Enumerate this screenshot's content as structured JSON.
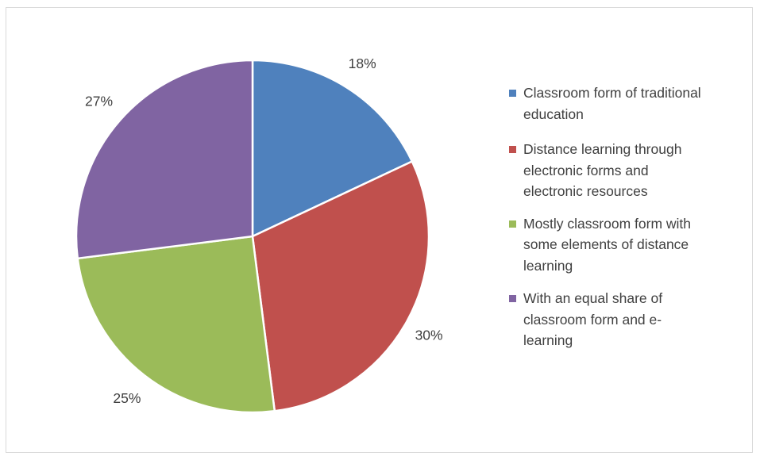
{
  "chart_data": {
    "type": "pie",
    "title": "",
    "categories": [
      "Classroom form of traditional education",
      "Distance learning through electronic forms and electronic resources",
      "Mostly classroom form with some elements of distance learning",
      "With an equal share of classroom form and e-learning"
    ],
    "values": [
      18,
      30,
      25,
      27
    ],
    "data_labels": [
      "18%",
      "30%",
      "25%",
      "27%"
    ],
    "colors": [
      "#4f81bd",
      "#c0504d",
      "#9bbb59",
      "#8064a2"
    ],
    "legend_placement": "right"
  },
  "legend": {
    "items": [
      {
        "label": "Classroom form of traditional\neducation",
        "color": "#4f81bd"
      },
      {
        "label": "Distance learning through\nelectronic forms and\nelectronic resources",
        "color": "#c0504d"
      },
      {
        "label": "Mostly classroom form with\nsome elements of distance\nlearning",
        "color": "#9bbb59"
      },
      {
        "label": "With an equal share of\nclassroom form and e-\nlearning",
        "color": "#8064a2"
      }
    ]
  }
}
